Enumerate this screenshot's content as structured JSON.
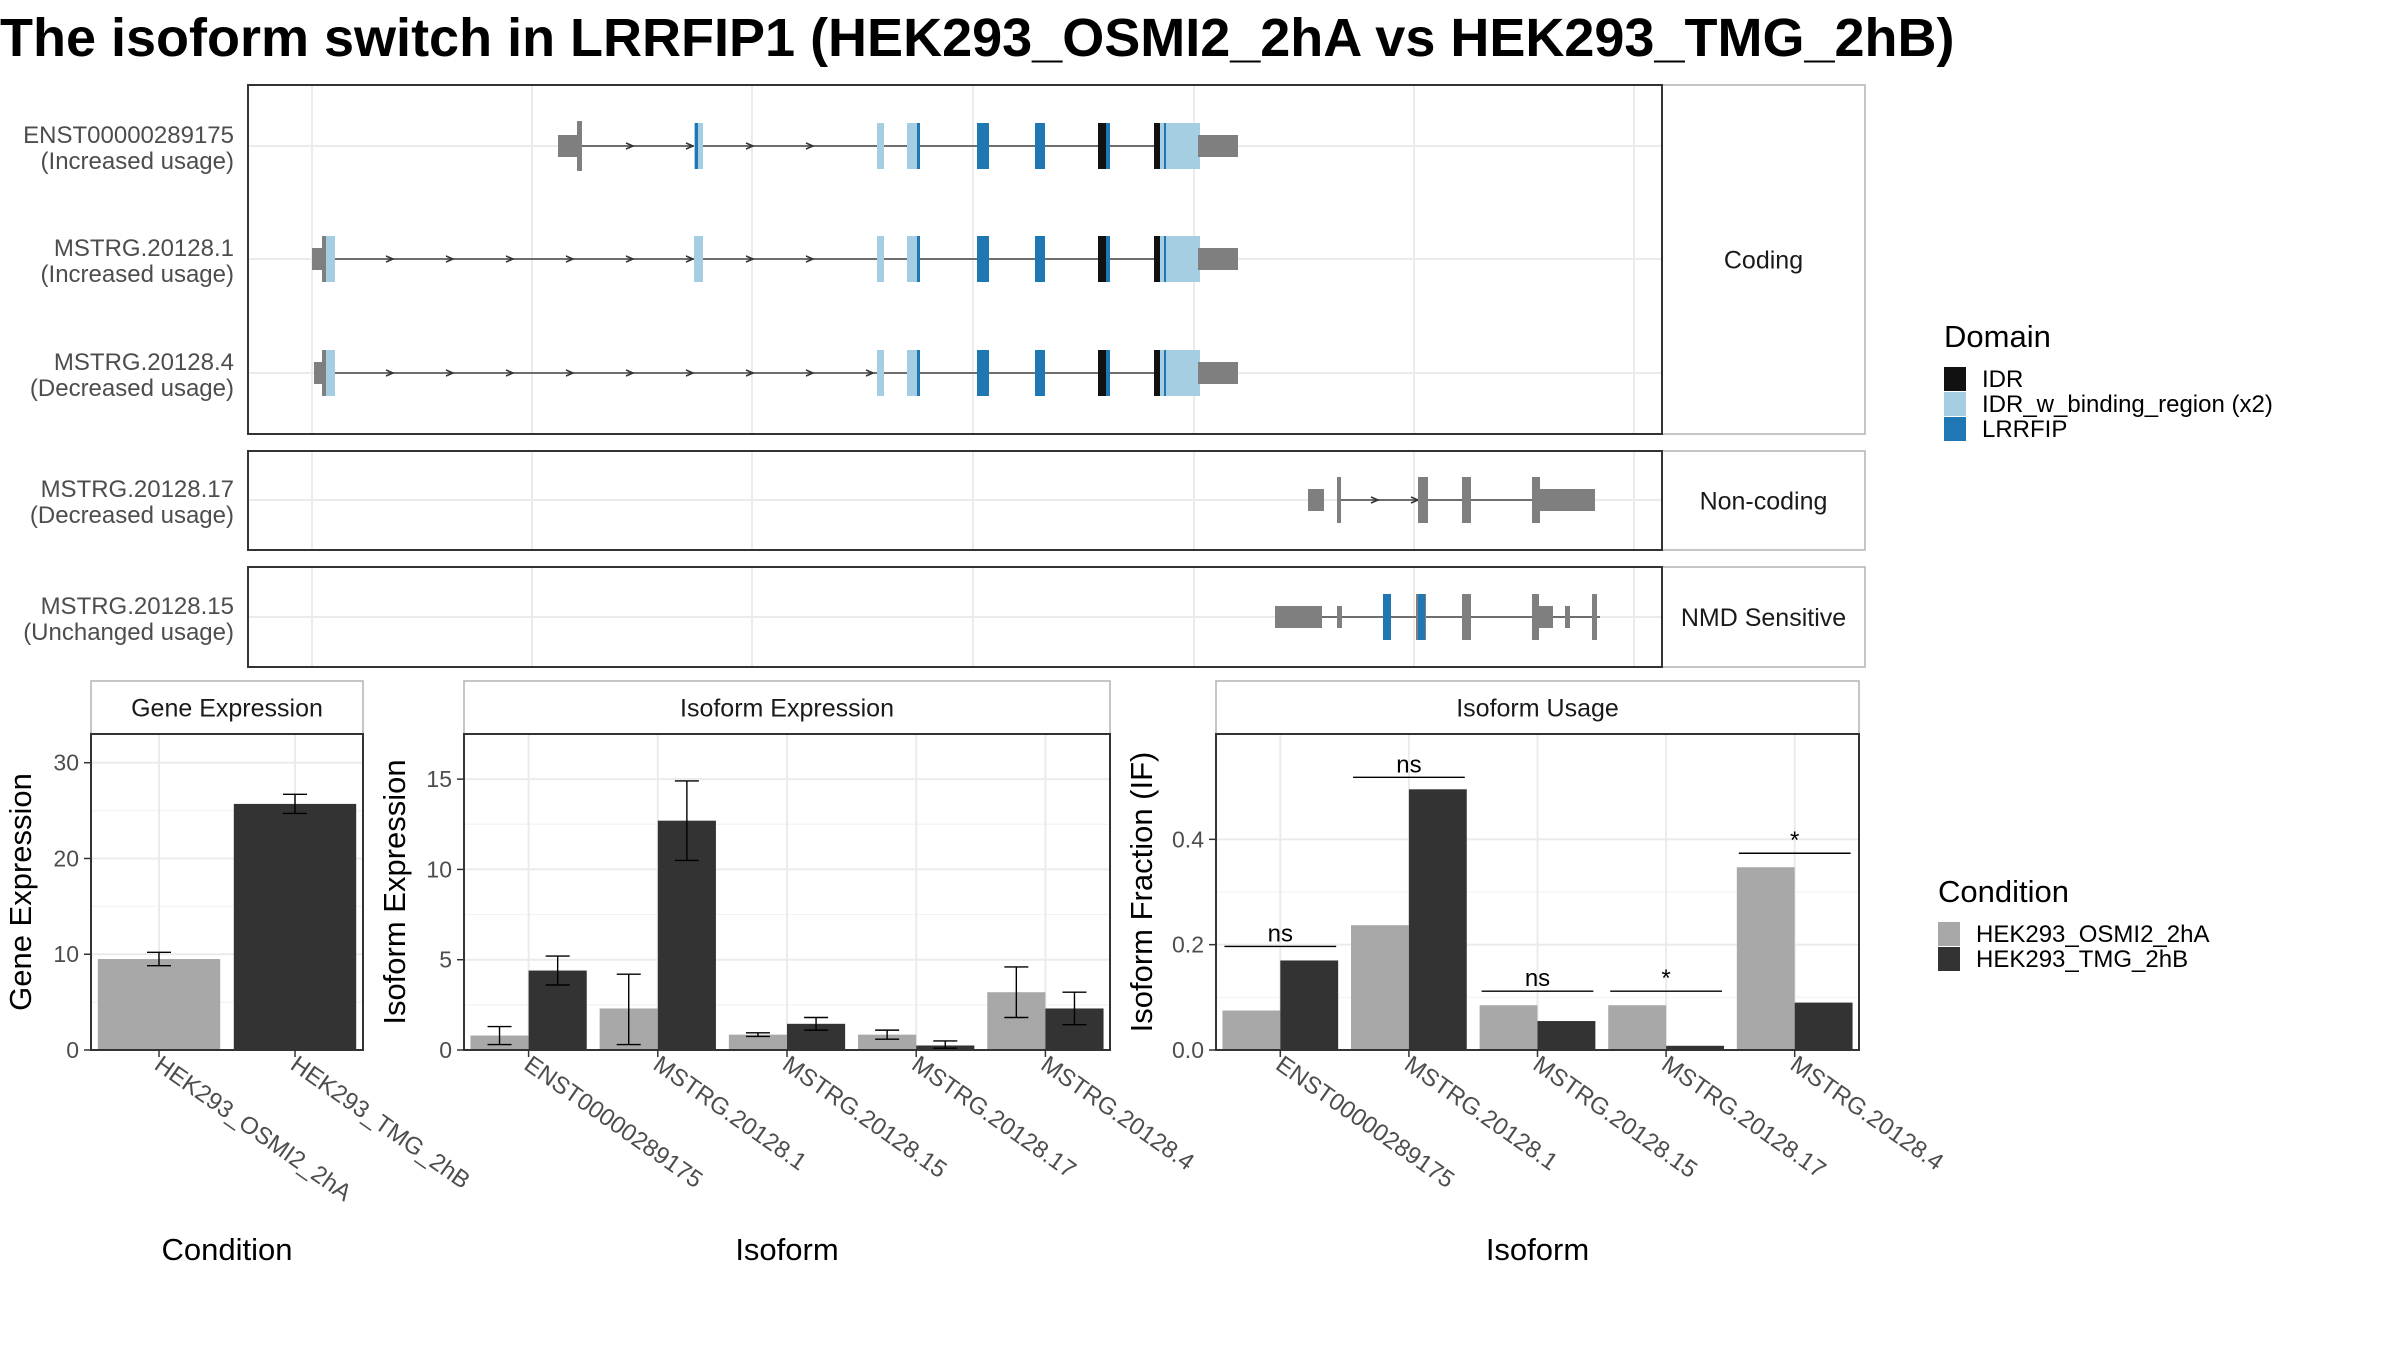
{
  "title": "The isoform switch in LRRFIP1 (HEK293_OSMI2_2hA vs HEK293_TMG_2hB)",
  "colors": {
    "osmi": "#A8A8A8",
    "tmg": "#333333",
    "exon": "#7F7F7F",
    "idr": "#111111",
    "idr_binding": "#A6CEE3",
    "lrrfip": "#1F78B4",
    "grid": "#EBEBEB",
    "panel_border": "#333333",
    "strip_border": "#B3B3B3"
  },
  "transcripts": {
    "groups": [
      {
        "label": "Coding",
        "rows": [
          {
            "name": "ENST00000289175",
            "usage": "(Increased usage)"
          },
          {
            "name": "MSTRG.20128.1",
            "usage": "(Increased usage)"
          },
          {
            "name": "MSTRG.20128.4",
            "usage": "(Decreased usage)"
          }
        ]
      },
      {
        "label": "Non-coding",
        "rows": [
          {
            "name": "MSTRG.20128.17",
            "usage": "(Decreased usage)"
          }
        ]
      },
      {
        "label": "NMD Sensitive",
        "rows": [
          {
            "name": "MSTRG.20128.15",
            "usage": "(Unchanged usage)"
          }
        ]
      }
    ]
  },
  "legend_domain": {
    "title": "Domain",
    "items": [
      {
        "label": "IDR",
        "color": "#111111"
      },
      {
        "label": "IDR_w_binding_region (x2)",
        "color": "#A6CEE3"
      },
      {
        "label": "LRRFIP",
        "color": "#1F78B4"
      }
    ]
  },
  "legend_condition": {
    "title": "Condition",
    "items": [
      {
        "label": "HEK293_OSMI2_2hA",
        "color": "#A8A8A8"
      },
      {
        "label": "HEK293_TMG_2hB",
        "color": "#333333"
      }
    ]
  },
  "chart_data": [
    {
      "type": "bar",
      "title": "Gene Expression",
      "xlabel": "Condition",
      "ylabel": "Gene Expression",
      "ylim": [
        0,
        33
      ],
      "yticks": [
        0,
        10,
        20,
        30
      ],
      "categories": [
        "HEK293_OSMI2_2hA",
        "HEK293_TMG_2hB"
      ],
      "values": [
        9.5,
        25.7
      ],
      "errors": [
        [
          8.8,
          10.2
        ],
        [
          24.7,
          26.7
        ]
      ],
      "grid": true
    },
    {
      "type": "bar",
      "title": "Isoform Expression",
      "xlabel": "Isoform",
      "ylabel": "Isoform Expression",
      "ylim": [
        0,
        17.5
      ],
      "yticks": [
        0,
        5,
        10,
        15
      ],
      "categories": [
        "ENST00000289175",
        "MSTRG.20128.1",
        "MSTRG.20128.15",
        "MSTRG.20128.17",
        "MSTRG.20128.4"
      ],
      "series": [
        {
          "name": "HEK293_OSMI2_2hA",
          "values": [
            0.8,
            2.3,
            0.85,
            0.85,
            3.2
          ],
          "errors": [
            [
              0.3,
              1.3
            ],
            [
              0.3,
              4.2
            ],
            [
              0.75,
              0.95
            ],
            [
              0.6,
              1.1
            ],
            [
              1.8,
              4.6
            ]
          ]
        },
        {
          "name": "HEK293_TMG_2hB",
          "values": [
            4.4,
            12.7,
            1.45,
            0.25,
            2.3
          ],
          "errors": [
            [
              3.6,
              5.2
            ],
            [
              10.5,
              14.9
            ],
            [
              1.1,
              1.8
            ],
            [
              0.1,
              0.5
            ],
            [
              1.4,
              3.2
            ]
          ]
        }
      ],
      "grid": true
    },
    {
      "type": "bar",
      "title": "Isoform Usage",
      "xlabel": "Isoform",
      "ylabel": "Isoform Fraction (IF)",
      "ylim": [
        0,
        0.6
      ],
      "yticks": [
        0.0,
        0.2,
        0.4
      ],
      "categories": [
        "ENST00000289175",
        "MSTRG.20128.1",
        "MSTRG.20128.15",
        "MSTRG.20128.17",
        "MSTRG.20128.4"
      ],
      "series": [
        {
          "name": "HEK293_OSMI2_2hA",
          "values": [
            0.075,
            0.237,
            0.085,
            0.085,
            0.347
          ]
        },
        {
          "name": "HEK293_TMG_2hB",
          "values": [
            0.17,
            0.495,
            0.055,
            0.008,
            0.09
          ]
        }
      ],
      "significance": [
        "ns",
        "ns",
        "ns",
        "*",
        "*"
      ],
      "grid": true
    }
  ]
}
